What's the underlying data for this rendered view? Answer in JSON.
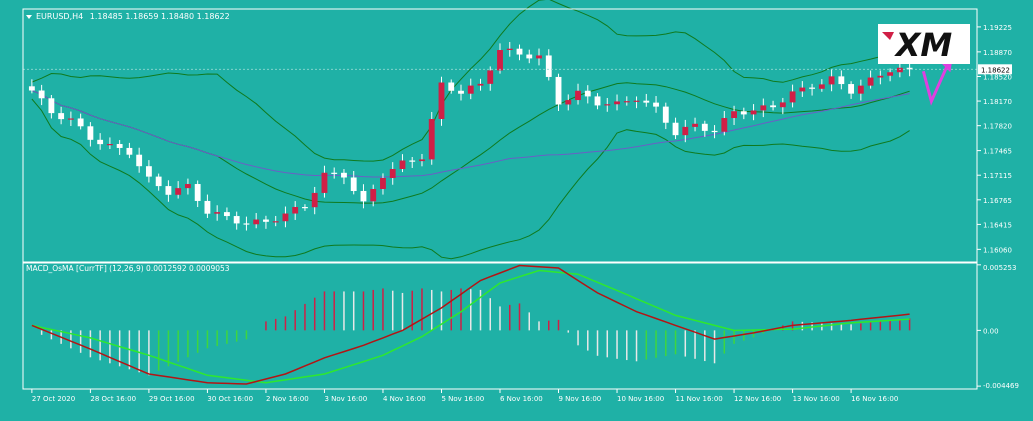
{
  "colors": {
    "background": "#1fb1a6",
    "frame": "#ffffff",
    "bull_candle": "#ffffff",
    "bear_candle": "#d01f46",
    "bollinger": "#0f7a1e",
    "moving_average": "#6a5fc6",
    "macd_line": "#b41414",
    "signal_line": "#2ee82e",
    "histogram_rise": "#d01f46",
    "histogram_fall": "#e8e8e8",
    "histogram_green": "#3ed63e",
    "arrow": "#e03fe0",
    "text": "#ffffff"
  },
  "chart_data": [
    {
      "type": "candlestick",
      "symbol": "EURUSD,H4",
      "ohlc_header": "1.18485 1.18659 1.18480 1.18622",
      "y_ticks": [
        "1.19225",
        "1.18870",
        "1.18520",
        "1.18170",
        "1.17820",
        "1.17465",
        "1.17115",
        "1.16765",
        "1.16415",
        "1.16060"
      ],
      "y_tick_values": [
        1.19225,
        1.1887,
        1.1852,
        1.1817,
        1.1782,
        1.17465,
        1.17115,
        1.16765,
        1.16415,
        1.1606
      ],
      "ylim": [
        1.1588,
        1.1948
      ],
      "current_price_label": "1.18622",
      "current_price": 1.18622,
      "x_ticks": [
        "27 Oct 2020",
        "28 Oct 16:00",
        "29 Oct 16:00",
        "30 Oct 16:00",
        "2 Nov 16:00",
        "3 Nov 16:00",
        "4 Nov 16:00",
        "5 Nov 16:00",
        "6 Nov 16:00",
        "9 Nov 16:00",
        "10 Nov 16:00",
        "11 Nov 16:00",
        "12 Nov 16:00",
        "13 Nov 16:00",
        "16 Nov 16:00"
      ],
      "x_tick_index": [
        0,
        6,
        12,
        18,
        24,
        30,
        36,
        42,
        48,
        54,
        60,
        66,
        72,
        78,
        84
      ],
      "bar_count": 91,
      "keypoints": [
        [
          0,
          1.1832
        ],
        [
          2,
          1.1801
        ],
        [
          4,
          1.179
        ],
        [
          6,
          1.1765
        ],
        [
          8,
          1.1752
        ],
        [
          10,
          1.1745
        ],
        [
          12,
          1.1705
        ],
        [
          14,
          1.1688
        ],
        [
          16,
          1.1695
        ],
        [
          18,
          1.166
        ],
        [
          20,
          1.1651
        ],
        [
          22,
          1.1643
        ],
        [
          24,
          1.1645
        ],
        [
          26,
          1.1656
        ],
        [
          28,
          1.1668
        ],
        [
          30,
          1.1712
        ],
        [
          32,
          1.1712
        ],
        [
          34,
          1.167
        ],
        [
          36,
          1.1712
        ],
        [
          38,
          1.1728
        ],
        [
          40,
          1.1738
        ],
        [
          42,
          1.184
        ],
        [
          44,
          1.183
        ],
        [
          46,
          1.184
        ],
        [
          48,
          1.189
        ],
        [
          50,
          1.1884
        ],
        [
          52,
          1.188
        ],
        [
          54,
          1.1815
        ],
        [
          56,
          1.1828
        ],
        [
          58,
          1.1815
        ],
        [
          60,
          1.1812
        ],
        [
          62,
          1.1822
        ],
        [
          64,
          1.1805
        ],
        [
          66,
          1.1772
        ],
        [
          68,
          1.1782
        ],
        [
          70,
          1.1775
        ],
        [
          72,
          1.1802
        ],
        [
          74,
          1.1803
        ],
        [
          76,
          1.181
        ],
        [
          78,
          1.1828
        ],
        [
          80,
          1.1838
        ],
        [
          82,
          1.1848
        ],
        [
          84,
          1.1832
        ],
        [
          86,
          1.1846
        ],
        [
          88,
          1.18622
        ],
        [
          90,
          1.18622
        ]
      ]
    },
    {
      "type": "macd-histogram",
      "title": "MACD_OsMA [CurrTF] (12,26,9) 0.0012592 0.0009053",
      "y_ticks": [
        "0.005253",
        "0.00",
        "-0.004469"
      ],
      "y_tick_values": [
        0.005253,
        0.0,
        -0.004469
      ],
      "ylim": [
        -0.0047,
        0.0054
      ],
      "macd": [
        [
          0,
          0.0004
        ],
        [
          6,
          -0.0015
        ],
        [
          12,
          -0.0035
        ],
        [
          18,
          -0.0042
        ],
        [
          22,
          -0.0043
        ],
        [
          26,
          -0.0035
        ],
        [
          30,
          -0.0022
        ],
        [
          34,
          -0.0012
        ],
        [
          38,
          0.0
        ],
        [
          42,
          0.0018
        ],
        [
          46,
          0.004
        ],
        [
          50,
          0.0052
        ],
        [
          54,
          0.005
        ],
        [
          58,
          0.003
        ],
        [
          62,
          0.0015
        ],
        [
          66,
          0.0004
        ],
        [
          70,
          -0.0007
        ],
        [
          74,
          -0.0002
        ],
        [
          78,
          0.0004
        ],
        [
          84,
          0.0008
        ],
        [
          90,
          0.0013
        ]
      ],
      "signal": [
        [
          0,
          0.0004
        ],
        [
          6,
          -0.0006
        ],
        [
          12,
          -0.002
        ],
        [
          18,
          -0.0036
        ],
        [
          24,
          -0.0042
        ],
        [
          30,
          -0.0035
        ],
        [
          36,
          -0.002
        ],
        [
          40,
          -0.0005
        ],
        [
          44,
          0.0015
        ],
        [
          48,
          0.0038
        ],
        [
          52,
          0.0048
        ],
        [
          56,
          0.0045
        ],
        [
          60,
          0.0032
        ],
        [
          66,
          0.0012
        ],
        [
          72,
          0.0
        ],
        [
          78,
          0.0001
        ],
        [
          84,
          0.0006
        ],
        [
          90,
          0.0009
        ]
      ]
    }
  ]
}
